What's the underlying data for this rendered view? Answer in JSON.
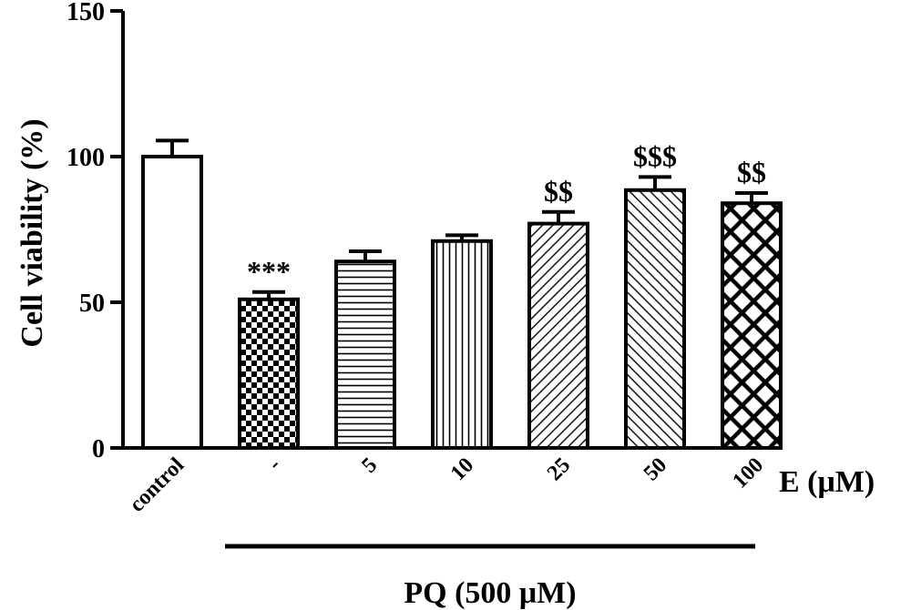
{
  "chart_data": {
    "type": "bar",
    "ylabel": "Cell viability (%)",
    "xlabel": "E (μM)",
    "group_label": "PQ (500 μM)",
    "ylim": [
      0,
      150
    ],
    "yticks": [
      0,
      50,
      100,
      150
    ],
    "categories": [
      "control",
      "-",
      "5",
      "10",
      "25",
      "50",
      "100"
    ],
    "values": [
      100,
      51,
      64,
      71,
      77,
      88.5,
      84
    ],
    "errors": [
      5.5,
      2.5,
      3.5,
      2,
      4,
      4.5,
      3.5
    ],
    "patterns": [
      "none",
      "checker",
      "horizontal",
      "vertical",
      "diagonal-up",
      "diagonal-down",
      "crosshatch"
    ],
    "annotations": [
      "",
      "***",
      "",
      "",
      "$$",
      "$$$",
      "$$"
    ],
    "bar_color": "#ffffff",
    "line_color": "#000000",
    "grid": false,
    "legend": "none"
  }
}
